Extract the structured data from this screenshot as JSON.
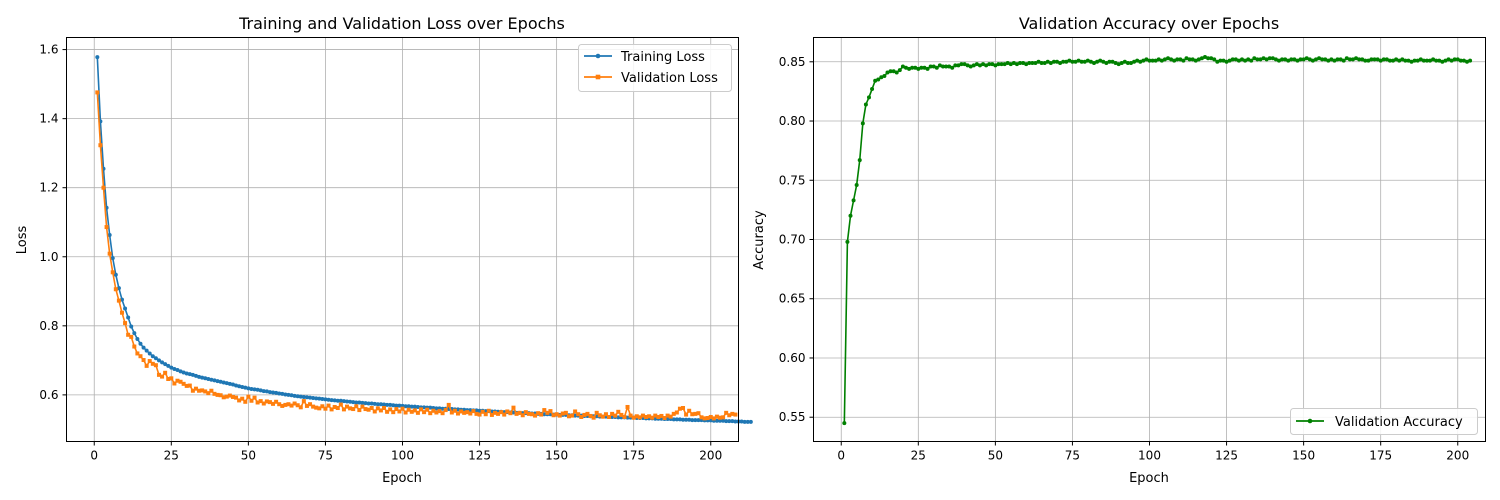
{
  "colors": {
    "training": "#1f77b4",
    "validation": "#ff7f0e",
    "accuracy": "#008000",
    "grid": "#b0b0b0"
  },
  "chart_data": [
    {
      "id": "loss",
      "type": "line",
      "title": "Training and Validation Loss over Epochs",
      "xlabel": "Epoch",
      "ylabel": "Loss",
      "xlim": [
        -9,
        209
      ],
      "ylim": [
        0.465,
        1.635
      ],
      "xticks": [
        0,
        25,
        50,
        75,
        100,
        125,
        150,
        175,
        200
      ],
      "yticks": [
        0.6,
        0.8,
        1.0,
        1.2,
        1.4,
        1.6
      ],
      "ytick_labels": [
        "0.6",
        "0.8",
        "1.0",
        "1.2",
        "1.4",
        "1.6"
      ],
      "grid": true,
      "legend_position": "top-right",
      "x_start": 1,
      "series": [
        {
          "name": "Training Loss",
          "color": "#1f77b4",
          "marker": "circle",
          "values": [
            1.578,
            1.392,
            1.255,
            1.142,
            1.063,
            0.996,
            0.948,
            0.909,
            0.876,
            0.85,
            0.824,
            0.798,
            0.779,
            0.762,
            0.748,
            0.737,
            0.728,
            0.72,
            0.712,
            0.706,
            0.7,
            0.694,
            0.689,
            0.684,
            0.679,
            0.675,
            0.672,
            0.668,
            0.665,
            0.662,
            0.66,
            0.658,
            0.655,
            0.652,
            0.65,
            0.648,
            0.646,
            0.644,
            0.642,
            0.64,
            0.638,
            0.636,
            0.634,
            0.632,
            0.63,
            0.627,
            0.625,
            0.623,
            0.621,
            0.619,
            0.617,
            0.616,
            0.615,
            0.613,
            0.611,
            0.61,
            0.608,
            0.607,
            0.606,
            0.604,
            0.603,
            0.601,
            0.6,
            0.599,
            0.597,
            0.596,
            0.595,
            0.594,
            0.593,
            0.592,
            0.591,
            0.59,
            0.589,
            0.588,
            0.587,
            0.586,
            0.585,
            0.584,
            0.583,
            0.583,
            0.582,
            0.581,
            0.58,
            0.579,
            0.578,
            0.578,
            0.577,
            0.576,
            0.575,
            0.575,
            0.574,
            0.573,
            0.573,
            0.572,
            0.571,
            0.571,
            0.57,
            0.569,
            0.569,
            0.568,
            0.567,
            0.567,
            0.566,
            0.566,
            0.565,
            0.564,
            0.564,
            0.563,
            0.563,
            0.562,
            0.561,
            0.561,
            0.56,
            0.56,
            0.559,
            0.559,
            0.558,
            0.558,
            0.557,
            0.557,
            0.556,
            0.556,
            0.555,
            0.555,
            0.554,
            0.554,
            0.553,
            0.553,
            0.552,
            0.552,
            0.551,
            0.551,
            0.55,
            0.55,
            0.549,
            0.549,
            0.548,
            0.548,
            0.547,
            0.547,
            0.547,
            0.546,
            0.546,
            0.545,
            0.545,
            0.544,
            0.544,
            0.544,
            0.543,
            0.543,
            0.542,
            0.542,
            0.542,
            0.541,
            0.541,
            0.54,
            0.54,
            0.54,
            0.539,
            0.539,
            0.538,
            0.538,
            0.538,
            0.537,
            0.537,
            0.537,
            0.536,
            0.536,
            0.536,
            0.535,
            0.535,
            0.535,
            0.534,
            0.534,
            0.534,
            0.533,
            0.533,
            0.533,
            0.532,
            0.532,
            0.532,
            0.531,
            0.531,
            0.531,
            0.53,
            0.53,
            0.53,
            0.529,
            0.529,
            0.529,
            0.528,
            0.528,
            0.528,
            0.527,
            0.527,
            0.527,
            0.527,
            0.526,
            0.526,
            0.526,
            0.525,
            0.525,
            0.525,
            0.525,
            0.524,
            0.524,
            0.524,
            0.523,
            0.523,
            0.523,
            0.522,
            0.522,
            0.522
          ]
        },
        {
          "name": "Validation Loss",
          "color": "#ff7f0e",
          "marker": "square",
          "values": [
            1.476,
            1.323,
            1.2,
            1.086,
            1.009,
            0.955,
            0.906,
            0.873,
            0.838,
            0.808,
            0.774,
            0.768,
            0.74,
            0.72,
            0.712,
            0.701,
            0.684,
            0.698,
            0.69,
            0.686,
            0.658,
            0.653,
            0.664,
            0.646,
            0.648,
            0.633,
            0.641,
            0.638,
            0.632,
            0.626,
            0.627,
            0.612,
            0.618,
            0.612,
            0.613,
            0.61,
            0.605,
            0.612,
            0.603,
            0.6,
            0.599,
            0.593,
            0.595,
            0.598,
            0.594,
            0.592,
            0.584,
            0.589,
            0.58,
            0.595,
            0.583,
            0.592,
            0.578,
            0.582,
            0.575,
            0.581,
            0.579,
            0.574,
            0.58,
            0.573,
            0.568,
            0.571,
            0.573,
            0.569,
            0.575,
            0.57,
            0.564,
            0.582,
            0.568,
            0.573,
            0.566,
            0.563,
            0.561,
            0.567,
            0.56,
            0.569,
            0.558,
            0.565,
            0.562,
            0.572,
            0.558,
            0.566,
            0.561,
            0.559,
            0.567,
            0.556,
            0.566,
            0.559,
            0.557,
            0.562,
            0.552,
            0.561,
            0.555,
            0.562,
            0.551,
            0.558,
            0.55,
            0.559,
            0.552,
            0.56,
            0.549,
            0.557,
            0.551,
            0.555,
            0.548,
            0.558,
            0.55,
            0.557,
            0.547,
            0.554,
            0.549,
            0.553,
            0.547,
            0.556,
            0.571,
            0.549,
            0.554,
            0.546,
            0.552,
            0.548,
            0.55,
            0.546,
            0.553,
            0.545,
            0.543,
            0.551,
            0.544,
            0.554,
            0.542,
            0.548,
            0.545,
            0.55,
            0.543,
            0.552,
            0.547,
            0.563,
            0.545,
            0.548,
            0.541,
            0.55,
            0.545,
            0.544,
            0.54,
            0.547,
            0.543,
            0.556,
            0.548,
            0.553,
            0.541,
            0.544,
            0.54,
            0.546,
            0.548,
            0.538,
            0.54,
            0.552,
            0.544,
            0.536,
            0.542,
            0.545,
            0.539,
            0.534,
            0.548,
            0.541,
            0.537,
            0.544,
            0.536,
            0.545,
            0.54,
            0.551,
            0.542,
            0.536,
            0.565,
            0.54,
            0.534,
            0.538,
            0.535,
            0.54,
            0.536,
            0.538,
            0.534,
            0.54,
            0.536,
            0.539,
            0.533,
            0.54,
            0.537,
            0.545,
            0.549,
            0.56,
            0.562,
            0.543,
            0.554,
            0.544,
            0.545,
            0.547,
            0.535,
            0.532,
            0.533,
            0.536,
            0.532,
            0.537,
            0.534,
            0.535,
            0.548,
            0.541,
            0.545,
            0.543
          ]
        }
      ]
    },
    {
      "id": "accuracy",
      "type": "line",
      "title": "Validation Accuracy over Epochs",
      "xlabel": "Epoch",
      "ylabel": "Accuracy",
      "xlim": [
        -9,
        209
      ],
      "ylim": [
        0.5295,
        0.8705
      ],
      "xticks": [
        0,
        25,
        50,
        75,
        100,
        125,
        150,
        175,
        200
      ],
      "yticks": [
        0.55,
        0.6,
        0.65,
        0.7,
        0.75,
        0.8,
        0.85
      ],
      "ytick_labels": [
        "0.55",
        "0.60",
        "0.65",
        "0.70",
        "0.75",
        "0.80",
        "0.85"
      ],
      "grid": true,
      "legend_position": "bottom-right",
      "x_start": 1,
      "series": [
        {
          "name": "Validation Accuracy",
          "color": "#008000",
          "marker": "circle",
          "values": [
            0.545,
            0.698,
            0.72,
            0.733,
            0.746,
            0.767,
            0.798,
            0.814,
            0.82,
            0.827,
            0.834,
            0.835,
            0.837,
            0.838,
            0.841,
            0.842,
            0.842,
            0.841,
            0.843,
            0.846,
            0.845,
            0.844,
            0.845,
            0.845,
            0.844,
            0.845,
            0.845,
            0.844,
            0.846,
            0.846,
            0.845,
            0.847,
            0.846,
            0.846,
            0.846,
            0.845,
            0.847,
            0.847,
            0.848,
            0.848,
            0.847,
            0.846,
            0.847,
            0.848,
            0.847,
            0.848,
            0.847,
            0.848,
            0.848,
            0.847,
            0.848,
            0.848,
            0.848,
            0.849,
            0.848,
            0.849,
            0.848,
            0.849,
            0.849,
            0.848,
            0.849,
            0.849,
            0.849,
            0.85,
            0.849,
            0.849,
            0.85,
            0.849,
            0.85,
            0.85,
            0.849,
            0.85,
            0.85,
            0.851,
            0.85,
            0.85,
            0.851,
            0.85,
            0.85,
            0.851,
            0.85,
            0.849,
            0.85,
            0.851,
            0.85,
            0.849,
            0.85,
            0.85,
            0.849,
            0.848,
            0.849,
            0.85,
            0.849,
            0.849,
            0.85,
            0.851,
            0.85,
            0.851,
            0.852,
            0.851,
            0.851,
            0.851,
            0.852,
            0.851,
            0.852,
            0.853,
            0.852,
            0.851,
            0.852,
            0.852,
            0.851,
            0.853,
            0.852,
            0.852,
            0.851,
            0.852,
            0.853,
            0.854,
            0.853,
            0.853,
            0.852,
            0.85,
            0.851,
            0.851,
            0.85,
            0.851,
            0.852,
            0.852,
            0.851,
            0.852,
            0.851,
            0.852,
            0.851,
            0.853,
            0.852,
            0.852,
            0.853,
            0.852,
            0.853,
            0.853,
            0.852,
            0.851,
            0.852,
            0.852,
            0.851,
            0.852,
            0.852,
            0.851,
            0.852,
            0.852,
            0.853,
            0.852,
            0.851,
            0.852,
            0.853,
            0.852,
            0.852,
            0.851,
            0.852,
            0.851,
            0.852,
            0.852,
            0.851,
            0.853,
            0.852,
            0.852,
            0.853,
            0.852,
            0.852,
            0.851,
            0.851,
            0.852,
            0.852,
            0.852,
            0.851,
            0.852,
            0.852,
            0.851,
            0.851,
            0.852,
            0.851,
            0.852,
            0.851,
            0.851,
            0.85,
            0.851,
            0.851,
            0.852,
            0.851,
            0.851,
            0.851,
            0.852,
            0.851,
            0.851,
            0.85,
            0.851,
            0.852,
            0.851,
            0.852,
            0.852,
            0.851,
            0.851,
            0.85,
            0.851
          ]
        }
      ]
    }
  ]
}
